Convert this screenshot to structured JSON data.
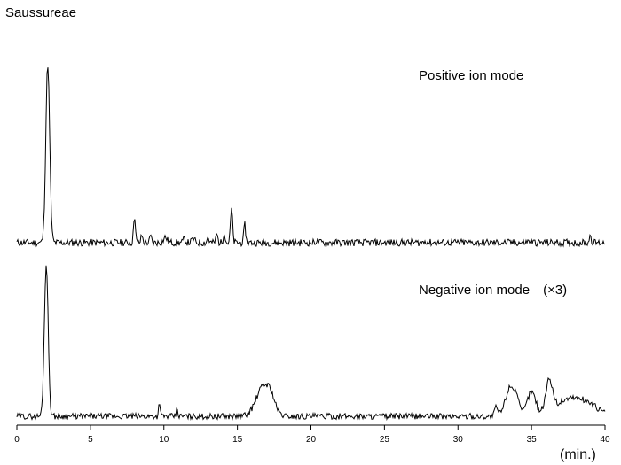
{
  "chart_data": {
    "type": "line",
    "title": "Saussureae",
    "xlabel": "(min.)",
    "xlim": [
      0,
      40
    ],
    "x_ticks": [
      0,
      5,
      10,
      15,
      20,
      25,
      30,
      35,
      40
    ],
    "grid": false,
    "panels": [
      {
        "label": "Positive ion mode",
        "baseline": 0.02,
        "peaks": [
          {
            "x": 2.1,
            "height": 1.0,
            "width": 0.13
          },
          {
            "x": 8.0,
            "height": 0.16,
            "width": 0.06
          },
          {
            "x": 8.5,
            "height": 0.04,
            "width": 0.06
          },
          {
            "x": 9.1,
            "height": 0.035,
            "width": 0.06
          },
          {
            "x": 10.1,
            "height": 0.03,
            "width": 0.12
          },
          {
            "x": 11.4,
            "height": 0.02,
            "width": 0.08
          },
          {
            "x": 12.0,
            "height": 0.02,
            "width": 0.1
          },
          {
            "x": 13.0,
            "height": 0.03,
            "width": 0.06
          },
          {
            "x": 13.6,
            "height": 0.05,
            "width": 0.06
          },
          {
            "x": 14.1,
            "height": 0.06,
            "width": 0.06
          },
          {
            "x": 14.6,
            "height": 0.19,
            "width": 0.07
          },
          {
            "x": 15.5,
            "height": 0.1,
            "width": 0.06
          },
          {
            "x": 20.4,
            "height": 0.01,
            "width": 0.1
          },
          {
            "x": 27.8,
            "height": 0.01,
            "width": 0.1
          },
          {
            "x": 34.9,
            "height": 0.01,
            "width": 0.15
          },
          {
            "x": 39.0,
            "height": 0.04,
            "width": 0.07
          }
        ]
      },
      {
        "label": "Negative ion mode　(×3)",
        "baseline": 0.02,
        "peaks": [
          {
            "x": 2.0,
            "height": 1.0,
            "width": 0.13
          },
          {
            "x": 9.7,
            "height": 0.1,
            "width": 0.05
          },
          {
            "x": 10.9,
            "height": 0.05,
            "width": 0.05
          },
          {
            "x": 16.8,
            "height": 0.2,
            "width": 0.5
          },
          {
            "x": 17.3,
            "height": 0.05,
            "width": 0.25
          },
          {
            "x": 32.6,
            "height": 0.06,
            "width": 0.1
          },
          {
            "x": 33.6,
            "height": 0.2,
            "width": 0.35
          },
          {
            "x": 34.0,
            "height": 0.05,
            "width": 0.12
          },
          {
            "x": 35.0,
            "height": 0.16,
            "width": 0.3
          },
          {
            "x": 36.2,
            "height": 0.21,
            "width": 0.25
          },
          {
            "x": 37.5,
            "height": 0.11,
            "width": 0.8
          },
          {
            "x": 38.9,
            "height": 0.07,
            "width": 0.7
          }
        ]
      }
    ]
  }
}
